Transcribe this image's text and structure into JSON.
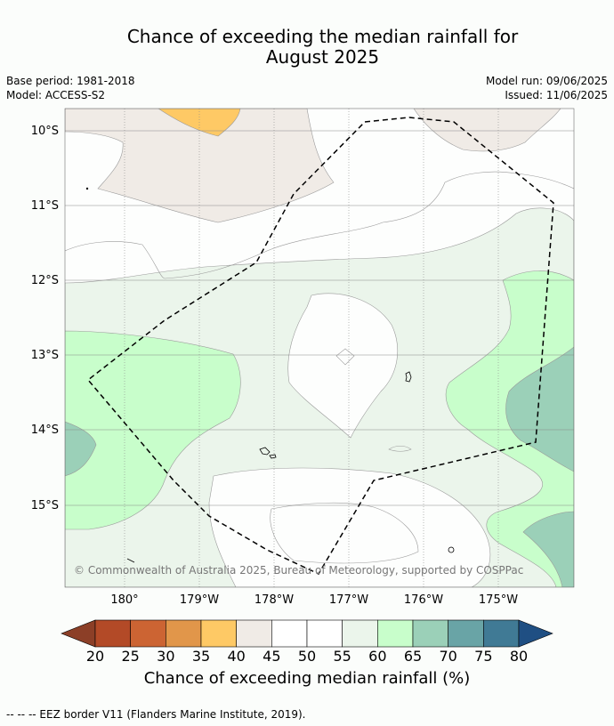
{
  "header": {
    "title_line1": "Chance of exceeding the median rainfall for",
    "title_line2": "August 2025",
    "base_period": "Base period: 1981-2018",
    "model": "Model: ACCESS-S2",
    "model_run": "Model run: 09/06/2025",
    "issued": "Issued: 11/06/2025"
  },
  "map": {
    "lat_labels": [
      "10°S",
      "11°S",
      "12°S",
      "13°S",
      "14°S",
      "15°S"
    ],
    "lon_labels": [
      "180°",
      "179°W",
      "178°W",
      "177°W",
      "176°W",
      "175°W"
    ],
    "copyright": "© Commonwealth of Australia 2025, Bureau of Meteorology, supported by COSPPac"
  },
  "colorbar": {
    "ticks": [
      "20",
      "25",
      "30",
      "35",
      "40",
      "45",
      "50",
      "55",
      "60",
      "65",
      "70",
      "75",
      "80"
    ],
    "colors": {
      "under": "#8c3f27",
      "bins": [
        "#b34a27",
        "#cc6433",
        "#e1964a",
        "#fec965",
        "#f0ebe6",
        "#ffffff",
        "#ffffff",
        "#ebf5eb",
        "#c8fecb",
        "#9bd0b8",
        "#69a4a6",
        "#407a95"
      ],
      "over": "#1f4f83"
    },
    "label": "Chance of exceeding median rainfall (%)"
  },
  "footer": {
    "eez_note": "-- -- -- EEZ border V11 (Flanders Marine Institute, 2019)."
  }
}
